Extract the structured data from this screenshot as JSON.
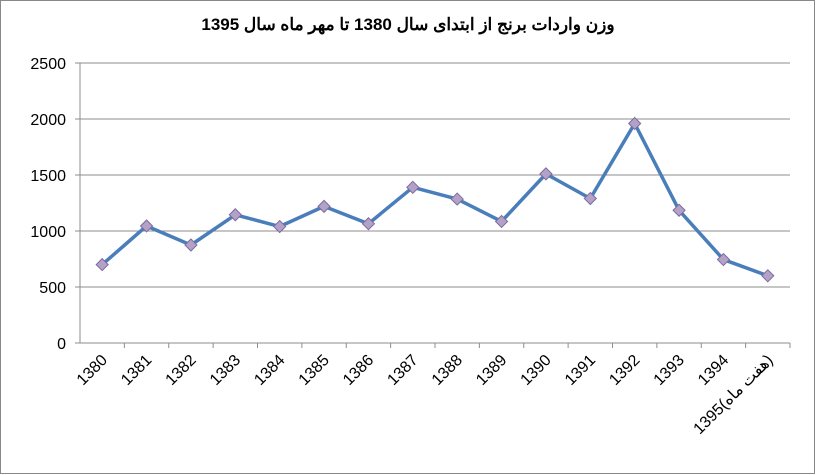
{
  "chart_data": {
    "type": "line",
    "title": "وزن واردات برنج از ابتدای سال 1380 تا مهر ماه سال 1395",
    "categories": [
      "1380",
      "1381",
      "1382",
      "1383",
      "1384",
      "1385",
      "1386",
      "1387",
      "1388",
      "1389",
      "1390",
      "1391",
      "1392",
      "1393",
      "1394",
      "1395(هفت ماه)"
    ],
    "series": [
      {
        "color": "#4a7ebb",
        "values": [
          700,
          1045,
          875,
          1145,
          1040,
          1220,
          1065,
          1390,
          1285,
          1085,
          1510,
          1290,
          1960,
          1185,
          745,
          600
        ]
      }
    ],
    "ylim": [
      0,
      2500
    ],
    "yticks": [
      0,
      500,
      1000,
      1500,
      2000,
      2500
    ],
    "grid": true
  }
}
